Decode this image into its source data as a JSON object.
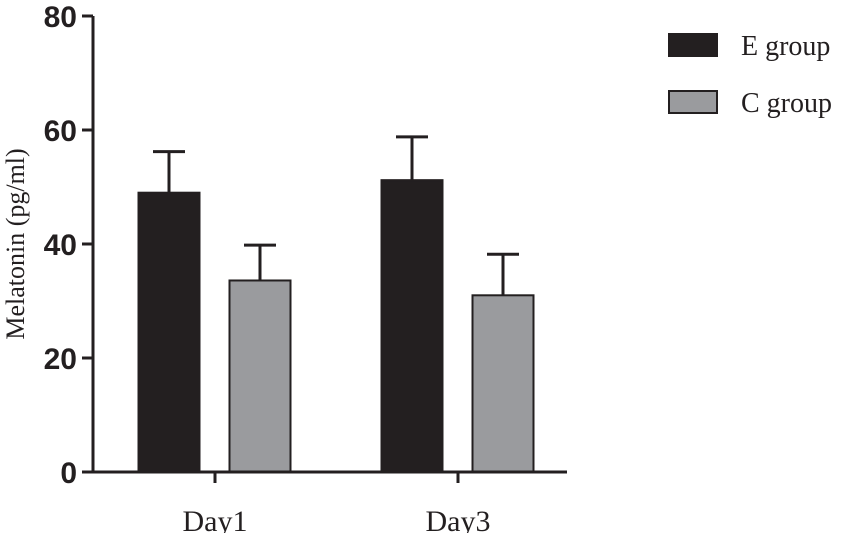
{
  "chart_data": {
    "type": "bar",
    "categories": [
      "Day1",
      "Day3"
    ],
    "series": [
      {
        "name": "E group",
        "color": "#231f20",
        "values": [
          49,
          51.2
        ],
        "errors": [
          7.2,
          7.6
        ]
      },
      {
        "name": "C group",
        "color": "#9a9b9e",
        "values": [
          33.6,
          31
        ],
        "errors": [
          6.2,
          7.2
        ]
      }
    ],
    "xlabel": "",
    "ylabel": "Melatonin (pg/ml)",
    "ylim": [
      0,
      80
    ],
    "yticks": [
      0,
      20,
      40,
      60,
      80
    ],
    "grid": false,
    "legend_position": "top-right"
  }
}
